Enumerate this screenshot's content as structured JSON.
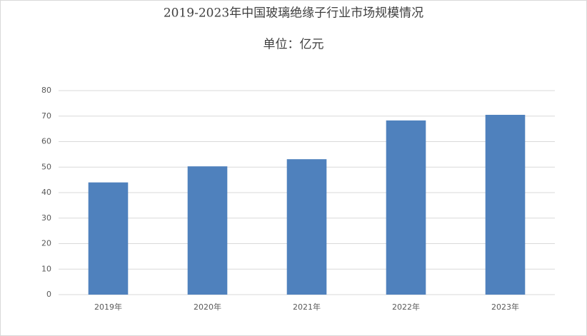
{
  "chart_data": {
    "type": "bar",
    "title": "2019-2023年中国玻璃绝缘子行业市场规模情况",
    "subtitle": "单位：亿元",
    "categories": [
      "2019年",
      "2020年",
      "2021年",
      "2022年",
      "2023年"
    ],
    "values": [
      44,
      50.3,
      53.1,
      68.3,
      70.5
    ],
    "color": "#4f81bd",
    "ylim": [
      0,
      80
    ],
    "yticks": [
      0,
      10,
      20,
      30,
      40,
      50,
      60,
      70,
      80
    ],
    "grid": true
  }
}
